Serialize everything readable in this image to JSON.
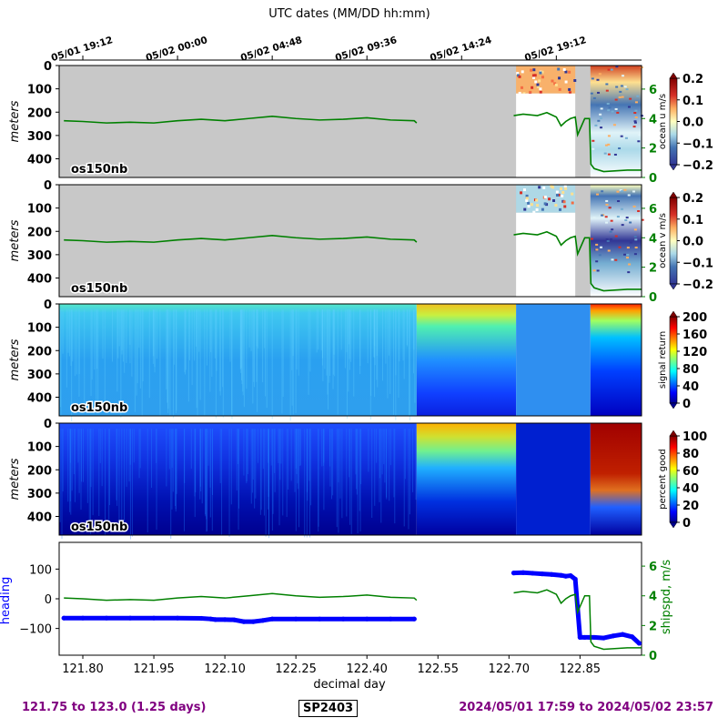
{
  "top_axis": {
    "title": "UTC dates (MM/DD hh:mm)",
    "ticks": [
      {
        "day": 121.8,
        "label": "05/01 19:12"
      },
      {
        "day": 122.0,
        "label": "05/02 00:00"
      },
      {
        "day": 122.2,
        "label": "05/02 04:48"
      },
      {
        "day": 122.4,
        "label": "05/02 09:36"
      },
      {
        "day": 122.6,
        "label": "05/02 14:24"
      },
      {
        "day": 122.8,
        "label": "05/02 19:12"
      }
    ]
  },
  "colors": {
    "gray_fill": "#c8c8c8",
    "ship_speed": "#008000",
    "heading": "#0000ff",
    "footer_text": "#800080"
  },
  "instrument_label": "os150nb",
  "footer": {
    "left": "121.75 to 123.0 (1.25 days)",
    "cruise": "SP2403",
    "right": "2024/05/01 17:59 to 2024/05/02 23:57"
  },
  "chart_data": [
    {
      "type": "heatmap",
      "panel": "ocean_u",
      "ylabel": "meters",
      "colorbar_label": "ocean u m/s",
      "colormap": "RdYlBu_r",
      "clim": [
        -0.2,
        0.2
      ],
      "colorbar_ticks": [
        "0.2",
        "0.1",
        "0.0",
        "−0.1",
        "−0.2"
      ],
      "yticks": [
        "0",
        "100",
        "200",
        "300",
        "400"
      ],
      "right_axis_ticks": [
        "6",
        "4",
        "2",
        "0"
      ],
      "right_axis_label": "",
      "xlim": [
        121.75,
        122.98
      ],
      "ylim": [
        480,
        0
      ],
      "overlay": "ship speed (m/s, right axis)"
    },
    {
      "type": "heatmap",
      "panel": "ocean_v",
      "ylabel": "meters",
      "colorbar_label": "ocean v m/s",
      "colormap": "RdYlBu_r",
      "clim": [
        -0.2,
        0.2
      ],
      "colorbar_ticks": [
        "0.2",
        "0.1",
        "0.0",
        "−0.1",
        "−0.2"
      ],
      "yticks": [
        "0",
        "100",
        "200",
        "300",
        "400"
      ],
      "right_axis_ticks": [
        "6",
        "4",
        "2",
        "0"
      ],
      "xlim": [
        121.75,
        122.98
      ],
      "ylim": [
        480,
        0
      ]
    },
    {
      "type": "heatmap",
      "panel": "signal_return",
      "ylabel": "meters",
      "colorbar_label": "signal return",
      "colormap": "jet",
      "clim": [
        0,
        200
      ],
      "colorbar_ticks": [
        "200",
        "160",
        "120",
        "80",
        "40",
        "0"
      ],
      "yticks": [
        "0",
        "100",
        "200",
        "300",
        "400"
      ],
      "xlim": [
        121.75,
        122.98
      ],
      "ylim": [
        480,
        0
      ]
    },
    {
      "type": "heatmap",
      "panel": "percent_good",
      "ylabel": "meters",
      "colorbar_label": "percent good",
      "colormap": "jet",
      "clim": [
        0,
        100
      ],
      "colorbar_ticks": [
        "100",
        "80",
        "60",
        "40",
        "20",
        "0"
      ],
      "yticks": [
        "0",
        "100",
        "200",
        "300",
        "400"
      ],
      "xlim": [
        121.75,
        122.98
      ],
      "ylim": [
        480,
        0
      ]
    },
    {
      "type": "line",
      "panel": "heading_speed",
      "xlabel": "decimal day",
      "ylabel": "heading",
      "y2label": "shipspd, m/s",
      "xlim": [
        121.75,
        122.98
      ],
      "ylim": [
        -190,
        190
      ],
      "y2lim": [
        0,
        7.6
      ],
      "xticks": [
        121.8,
        121.95,
        122.1,
        122.25,
        122.4,
        122.55,
        122.7,
        122.85
      ],
      "xtick_labels": [
        "121.80",
        "121.95",
        "122.10",
        "122.25",
        "122.40",
        "122.55",
        "122.70",
        "122.85"
      ],
      "yticks": [
        100,
        0,
        -100
      ],
      "ytick_labels": [
        "100",
        "0",
        "−100"
      ],
      "y2ticks": [
        6,
        4,
        2,
        0
      ],
      "y2tick_labels": [
        "6",
        "4",
        "2",
        "0"
      ],
      "series": [
        {
          "name": "heading",
          "style": "points",
          "x": [
            121.76,
            121.8,
            121.85,
            121.9,
            121.95,
            122.0,
            122.05,
            122.07,
            122.08,
            122.1,
            122.12,
            122.14,
            122.16,
            122.18,
            122.2,
            122.25,
            122.3,
            122.35,
            122.4,
            122.45,
            122.5,
            122.71,
            122.73,
            122.75,
            122.77,
            122.79,
            122.81,
            122.82,
            122.83,
            122.84,
            122.85,
            122.86,
            122.87,
            122.88,
            122.9,
            122.92,
            122.94,
            122.96,
            122.975
          ],
          "y": [
            -65,
            -65,
            -65,
            -65,
            -65,
            -65,
            -66,
            -68,
            -70,
            -70,
            -71,
            -77,
            -77,
            -73,
            -68,
            -68,
            -68,
            -68,
            -68,
            -68,
            -68,
            87,
            88,
            86,
            84,
            82,
            79,
            76,
            78,
            66,
            -130,
            -130,
            -130,
            -130,
            -132,
            -125,
            -120,
            -128,
            -150
          ]
        },
        {
          "name": "ship speed",
          "axis": "right",
          "x": [
            121.76,
            121.8,
            121.85,
            121.9,
            121.95,
            122.0,
            122.05,
            122.1,
            122.15,
            122.2,
            122.25,
            122.3,
            122.35,
            122.4,
            122.45,
            122.5,
            122.505,
            122.71,
            122.73,
            122.76,
            122.78,
            122.8,
            122.81,
            122.82,
            122.83,
            122.84,
            122.845,
            122.86,
            122.87,
            122.873,
            122.88,
            122.9,
            122.95,
            122.98
          ],
          "y": [
            3.85,
            3.8,
            3.7,
            3.75,
            3.7,
            3.85,
            3.95,
            3.85,
            4.0,
            4.15,
            4.0,
            3.9,
            3.95,
            4.05,
            3.9,
            3.85,
            3.7,
            4.2,
            4.3,
            4.2,
            4.4,
            4.1,
            3.5,
            3.8,
            4.0,
            4.1,
            2.9,
            4.0,
            4.0,
            0.9,
            0.6,
            0.4,
            0.5,
            0.5
          ]
        }
      ]
    }
  ]
}
